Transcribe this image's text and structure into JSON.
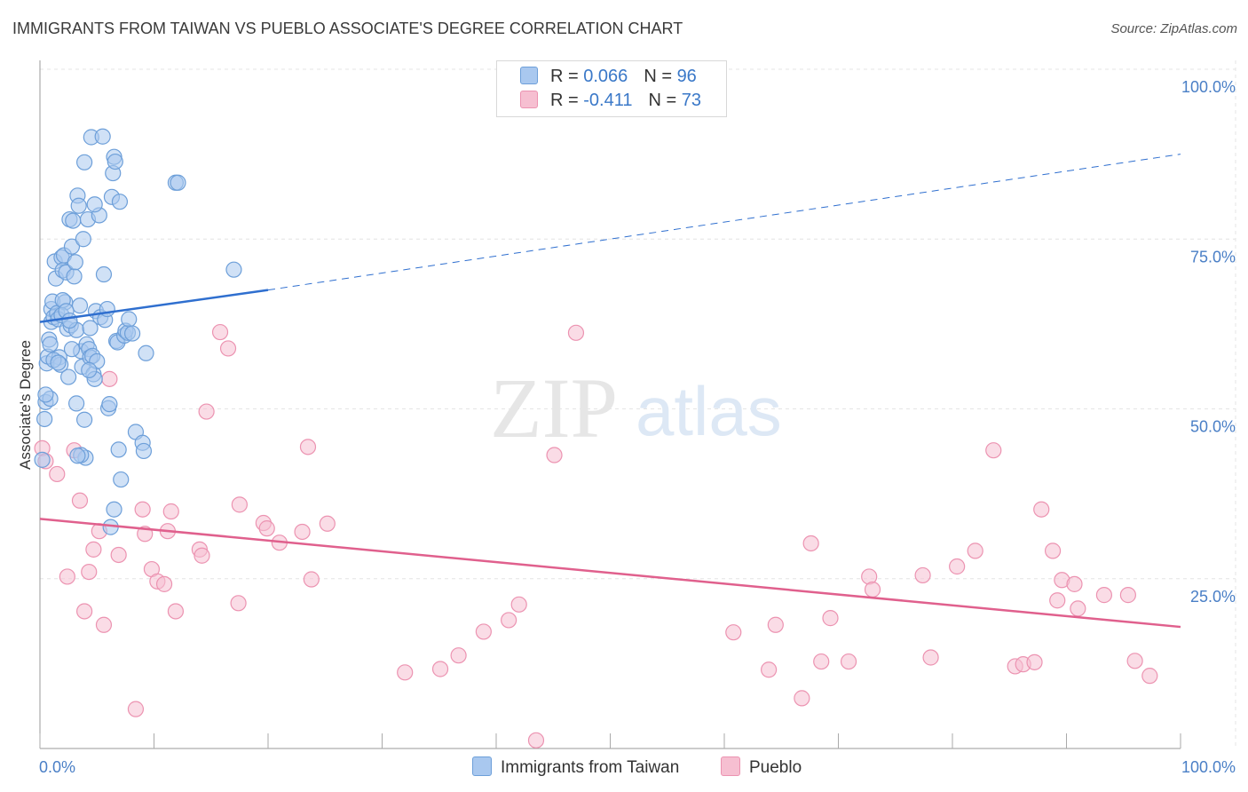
{
  "title": "IMMIGRANTS FROM TAIWAN VS PUEBLO ASSOCIATE'S DEGREE CORRELATION CHART",
  "source": "Source: ZipAtlas.com",
  "watermark": {
    "zip": "ZIP",
    "atlas": "atlas"
  },
  "colors": {
    "blue_fill": "#a9c8ef",
    "blue_stroke": "#6d9fd9",
    "blue_line": "#2f6fcf",
    "pink_fill": "#f6bfd1",
    "pink_stroke": "#ec93b1",
    "pink_line": "#e0608d",
    "tick_label": "#4a7fc6",
    "grid": "#e4e4e4"
  },
  "legend": {
    "rows": [
      {
        "r_label": "R = ",
        "r_value": "0.066",
        "n_label": "N = ",
        "n_value": "96"
      },
      {
        "r_label": "R = ",
        "r_value": "-0.411",
        "n_label": "N = ",
        "n_value": "73"
      }
    ]
  },
  "chart_data": {
    "type": "scatter",
    "title": "IMMIGRANTS FROM TAIWAN VS PUEBLO ASSOCIATE'S DEGREE CORRELATION CHART",
    "xlabel": "",
    "ylabel": "Associate's Degree",
    "xlim": [
      0,
      100
    ],
    "ylim": [
      0,
      100
    ],
    "x_tick_labels": [
      "0.0%",
      "100.0%"
    ],
    "y_tick_labels": [
      "25.0%",
      "50.0%",
      "75.0%",
      "100.0%"
    ],
    "y_ticks": [
      25,
      50,
      75,
      100
    ],
    "grid": true,
    "legend_position": "top-center",
    "series": [
      {
        "name": "Immigrants from Taiwan",
        "R": 0.066,
        "N": 96,
        "trend": {
          "x": [
            0,
            20
          ],
          "y": [
            62.8,
            67.5
          ],
          "dashed_extension_to": [
            100,
            87.5
          ]
        },
        "points": [
          [
            0.2,
            42.5
          ],
          [
            0.4,
            48.5
          ],
          [
            0.5,
            51.0
          ],
          [
            0.6,
            56.7
          ],
          [
            0.7,
            57.7
          ],
          [
            0.8,
            60.2
          ],
          [
            0.9,
            51.5
          ],
          [
            1.0,
            62.8
          ],
          [
            1.0,
            64.7
          ],
          [
            1.1,
            65.8
          ],
          [
            1.2,
            63.5
          ],
          [
            1.3,
            71.7
          ],
          [
            1.4,
            69.2
          ],
          [
            1.5,
            64.1
          ],
          [
            1.6,
            63.2
          ],
          [
            1.7,
            57.6
          ],
          [
            1.8,
            56.5
          ],
          [
            1.9,
            72.3
          ],
          [
            2.0,
            70.4
          ],
          [
            2.1,
            72.6
          ],
          [
            2.2,
            65.7
          ],
          [
            2.3,
            70.1
          ],
          [
            2.4,
            61.8
          ],
          [
            2.5,
            54.7
          ],
          [
            2.6,
            77.9
          ],
          [
            2.7,
            62.3
          ],
          [
            2.8,
            73.9
          ],
          [
            2.9,
            77.7
          ],
          [
            3.0,
            69.5
          ],
          [
            3.1,
            71.6
          ],
          [
            3.2,
            61.6
          ],
          [
            3.3,
            81.4
          ],
          [
            3.4,
            79.9
          ],
          [
            3.5,
            65.2
          ],
          [
            3.6,
            58.5
          ],
          [
            3.7,
            56.2
          ],
          [
            3.8,
            75.0
          ],
          [
            3.9,
            48.4
          ],
          [
            4.0,
            42.8
          ],
          [
            4.1,
            59.5
          ],
          [
            4.2,
            77.9
          ],
          [
            4.3,
            58.8
          ],
          [
            4.4,
            57.6
          ],
          [
            4.5,
            90.0
          ],
          [
            4.6,
            57.8
          ],
          [
            4.7,
            55.1
          ],
          [
            4.8,
            54.4
          ],
          [
            4.9,
            64.4
          ],
          [
            5.0,
            57.0
          ],
          [
            5.2,
            78.5
          ],
          [
            5.3,
            63.5
          ],
          [
            5.5,
            90.1
          ],
          [
            5.6,
            69.8
          ],
          [
            6.0,
            50.1
          ],
          [
            6.1,
            50.7
          ],
          [
            6.3,
            81.2
          ],
          [
            6.4,
            84.7
          ],
          [
            6.5,
            87.1
          ],
          [
            6.6,
            86.4
          ],
          [
            6.7,
            60.0
          ],
          [
            6.8,
            59.8
          ],
          [
            7.0,
            80.5
          ],
          [
            7.1,
            39.6
          ],
          [
            7.4,
            60.8
          ],
          [
            7.5,
            61.5
          ],
          [
            7.7,
            61.2
          ],
          [
            7.8,
            63.2
          ],
          [
            8.1,
            61.1
          ],
          [
            8.4,
            46.6
          ],
          [
            9.0,
            45.0
          ],
          [
            9.1,
            43.8
          ],
          [
            9.3,
            58.2
          ],
          [
            11.9,
            83.3
          ],
          [
            12.1,
            83.3
          ],
          [
            17.0,
            70.5
          ],
          [
            1.9,
            63.8
          ],
          [
            2.8,
            58.8
          ],
          [
            3.6,
            43.2
          ],
          [
            4.3,
            55.7
          ],
          [
            6.2,
            32.6
          ],
          [
            6.5,
            35.2
          ],
          [
            6.9,
            44.0
          ],
          [
            1.2,
            57.2
          ],
          [
            0.9,
            59.5
          ],
          [
            2.0,
            66.0
          ],
          [
            2.3,
            64.4
          ],
          [
            3.2,
            50.8
          ],
          [
            3.9,
            86.3
          ],
          [
            4.8,
            80.1
          ],
          [
            5.7,
            63.1
          ],
          [
            0.5,
            52.1
          ],
          [
            1.6,
            56.8
          ],
          [
            2.6,
            63.0
          ],
          [
            3.3,
            43.1
          ],
          [
            4.4,
            61.9
          ],
          [
            5.9,
            64.7
          ]
        ]
      },
      {
        "name": "Pueblo",
        "R": -0.411,
        "N": 73,
        "trend": {
          "x": [
            0,
            100
          ],
          "y": [
            33.8,
            17.9
          ]
        },
        "points": [
          [
            0.2,
            44.2
          ],
          [
            0.5,
            42.3
          ],
          [
            1.5,
            40.4
          ],
          [
            2.4,
            25.3
          ],
          [
            3.0,
            43.9
          ],
          [
            3.5,
            36.5
          ],
          [
            3.9,
            20.2
          ],
          [
            4.3,
            26.0
          ],
          [
            4.7,
            29.3
          ],
          [
            5.2,
            32.0
          ],
          [
            5.6,
            18.2
          ],
          [
            6.1,
            54.4
          ],
          [
            6.9,
            28.5
          ],
          [
            8.4,
            5.8
          ],
          [
            9.0,
            35.2
          ],
          [
            9.2,
            31.6
          ],
          [
            9.8,
            26.4
          ],
          [
            10.3,
            24.6
          ],
          [
            10.9,
            24.2
          ],
          [
            11.2,
            32.0
          ],
          [
            11.5,
            34.9
          ],
          [
            11.9,
            20.2
          ],
          [
            14.0,
            29.3
          ],
          [
            14.2,
            28.4
          ],
          [
            14.6,
            49.6
          ],
          [
            15.8,
            61.3
          ],
          [
            16.5,
            58.9
          ],
          [
            17.4,
            21.4
          ],
          [
            17.5,
            35.9
          ],
          [
            19.6,
            33.2
          ],
          [
            19.9,
            32.4
          ],
          [
            21.0,
            30.3
          ],
          [
            23.0,
            31.9
          ],
          [
            23.5,
            44.4
          ],
          [
            25.2,
            33.1
          ],
          [
            32.0,
            11.2
          ],
          [
            35.1,
            11.7
          ],
          [
            36.7,
            13.7
          ],
          [
            38.9,
            17.2
          ],
          [
            41.1,
            18.9
          ],
          [
            42.0,
            21.2
          ],
          [
            43.5,
            1.2
          ],
          [
            45.1,
            43.2
          ],
          [
            47.0,
            61.2
          ],
          [
            60.8,
            17.1
          ],
          [
            63.9,
            11.6
          ],
          [
            64.5,
            18.2
          ],
          [
            66.8,
            7.4
          ],
          [
            67.6,
            30.2
          ],
          [
            68.5,
            12.8
          ],
          [
            69.3,
            19.2
          ],
          [
            70.9,
            12.8
          ],
          [
            72.7,
            25.3
          ],
          [
            73.0,
            23.4
          ],
          [
            77.4,
            25.5
          ],
          [
            78.1,
            13.4
          ],
          [
            80.4,
            26.8
          ],
          [
            82.0,
            29.1
          ],
          [
            83.6,
            43.9
          ],
          [
            85.5,
            12.1
          ],
          [
            86.2,
            12.4
          ],
          [
            87.2,
            12.7
          ],
          [
            87.8,
            35.2
          ],
          [
            88.8,
            29.1
          ],
          [
            89.2,
            21.8
          ],
          [
            89.6,
            24.8
          ],
          [
            90.7,
            24.2
          ],
          [
            91.0,
            20.6
          ],
          [
            93.3,
            22.6
          ],
          [
            95.4,
            22.6
          ],
          [
            96.0,
            12.9
          ],
          [
            97.3,
            10.7
          ],
          [
            23.8,
            24.9
          ]
        ]
      }
    ]
  }
}
